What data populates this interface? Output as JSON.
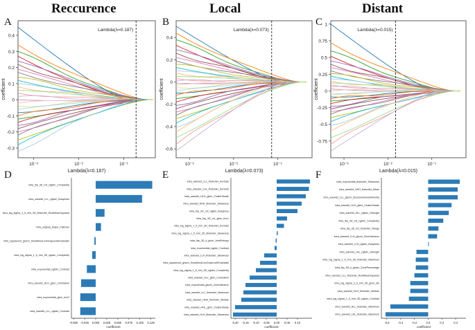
{
  "columns": [
    "Reccurence",
    "Local",
    "Distant"
  ],
  "panel_letters": [
    "A",
    "B",
    "C",
    "D",
    "E",
    "F"
  ],
  "chart_data": [
    {
      "id": "A",
      "type": "line",
      "title": "Reccurence",
      "xscale": "log",
      "xlim": [
        0.00045,
        0.5
      ],
      "ylim": [
        -0.36,
        0.49
      ],
      "xticks": [
        {
          "v": 0.001,
          "l": "10⁻³"
        },
        {
          "v": 0.01,
          "l": "10⁻²"
        },
        {
          "v": 0.1,
          "l": "10⁻¹"
        }
      ],
      "yticks": [
        -0.3,
        -0.2,
        -0.1,
        0,
        0.1,
        0.2,
        0.3,
        0.4
      ],
      "xlabel": "Lambda(λ=0.187)",
      "ylabel": "coefficient",
      "lambda_value": 0.187,
      "lambda_label": "Lambda(λ=0.187)",
      "path_count": 30,
      "start_coefficients": [
        0.45,
        0.34,
        0.3,
        0.27,
        0.24,
        0.22,
        0.19,
        0.17,
        0.14,
        0.12,
        0.1,
        0.08,
        0.06,
        0.04,
        0.02,
        0.0,
        -0.02,
        -0.04,
        -0.06,
        -0.08,
        -0.1,
        -0.12,
        -0.14,
        -0.16,
        -0.18,
        -0.2,
        -0.22,
        -0.25,
        -0.28,
        -0.32
      ]
    },
    {
      "id": "B",
      "type": "line",
      "title": "Local",
      "xscale": "log",
      "xlim": [
        0.0005,
        0.6
      ],
      "ylim": [
        -0.68,
        0.55
      ],
      "xticks": [
        {
          "v": 0.001,
          "l": "10⁻³"
        },
        {
          "v": 0.01,
          "l": "10⁻²"
        },
        {
          "v": 0.1,
          "l": "10⁻¹"
        }
      ],
      "yticks": [
        -0.6,
        -0.4,
        -0.2,
        0,
        0.2,
        0.4
      ],
      "xlabel": "Lambda(λ=0.073)",
      "ylabel": "coefficient",
      "lambda_value": 0.073,
      "lambda_label": "Lambda(λ=0.073)",
      "path_count": 34,
      "start_coefficients": [
        0.5,
        0.44,
        0.38,
        0.33,
        0.29,
        0.26,
        0.22,
        0.19,
        0.16,
        0.13,
        0.1,
        0.08,
        0.05,
        0.03,
        0.01,
        -0.01,
        -0.03,
        -0.05,
        -0.08,
        -0.1,
        -0.12,
        -0.15,
        -0.18,
        -0.21,
        -0.24,
        -0.27,
        -0.3,
        -0.33,
        -0.37,
        -0.41,
        -0.45,
        -0.5,
        -0.56,
        -0.62
      ]
    },
    {
      "id": "C",
      "type": "line",
      "title": "Distant",
      "xscale": "log",
      "xlim": [
        0.0005,
        0.6
      ],
      "ylim": [
        -1.0,
        1.05
      ],
      "xticks": [
        {
          "v": 0.001,
          "l": "10⁻³"
        },
        {
          "v": 0.01,
          "l": "10⁻²"
        },
        {
          "v": 0.1,
          "l": "10⁻¹"
        }
      ],
      "yticks": [
        -0.75,
        -0.5,
        -0.25,
        0,
        0.25,
        0.5,
        0.75,
        1.0
      ],
      "xlabel": "Lambda(λ=0.015)",
      "ylabel": "coefficient",
      "lambda_value": 0.015,
      "lambda_label": "Lambda(λ=0.015)",
      "path_count": 34,
      "start_coefficients": [
        1.0,
        0.72,
        0.6,
        0.52,
        0.45,
        0.4,
        0.35,
        0.3,
        0.26,
        0.22,
        0.18,
        0.15,
        0.12,
        0.09,
        0.06,
        0.03,
        0.0,
        -0.03,
        -0.06,
        -0.09,
        -0.12,
        -0.15,
        -0.19,
        -0.23,
        -0.27,
        -0.31,
        -0.35,
        -0.4,
        -0.46,
        -0.52,
        -0.6,
        -0.7,
        -0.8,
        -0.9
      ]
    },
    {
      "id": "D",
      "type": "bar",
      "orientation": "horizontal",
      "xlabel": "coefficient",
      "xlim": [
        -0.055,
        0.135
      ],
      "xticks": [
        -0.05,
        -0.025,
        0.0,
        0.025,
        0.05,
        0.075,
        0.1,
        0.125
      ],
      "xtick_labels": [
        "-0.050",
        "-0.025",
        "0.000",
        "0.025",
        "0.050",
        "0.075",
        "0.100",
        "0.125"
      ],
      "categories": [
        "intra_lbp_3D_m2_ngldm_Complexity",
        "intra_wavelet_LLL_ngtdm_Busyness",
        "intra_log_sigma_1_5_mm_3D_firstorder_RootMeanSquared",
        "intra_original_shape_Flatness",
        "intra_squareroot_glszm_SmallAreaLowGrayLevelEmphasis",
        "intra_log_sigma_1_5_mm_3D_ngtdm_Complexity",
        "intra_exponential_ngtdm_Contrast",
        "intra_wavelet_HLH_glcm_Correlation",
        "intra_exponential_glcm_Imc2",
        "intra_wavelet_LLL_ngtdm_Contrast"
      ],
      "values": [
        0.128,
        0.105,
        0.02,
        0.012,
        -0.003,
        -0.008,
        -0.02,
        -0.033,
        -0.035,
        -0.035
      ]
    },
    {
      "id": "E",
      "type": "bar",
      "orientation": "horizontal",
      "xlabel": "coefficient",
      "xlim": [
        -0.22,
        0.17
      ],
      "xticks": [
        -0.2,
        -0.15,
        -0.1,
        -0.05,
        0.0,
        0.05,
        0.1
      ],
      "xtick_labels": [
        "-0.20",
        "-0.15",
        "-0.10",
        "-0.05",
        "0.00",
        "0.05",
        "0.10"
      ],
      "categories": [
        "intra_wavelet_LLL_firstorder_Kurtosis",
        "intra_wavelet_LHL_firstorder_Kurtosis",
        "intra_wavelet_HLH_glrlm_ClusterShade",
        "intra_wavelet_HHH_firstorder_Skewness",
        "intra_lbp_3D_m2_ngldm_Busyness",
        "intra_lbp_3D_m1_glcm_Imc1",
        "intra_log_sigma_1_5_mm_3D_firstorder_Kurtosis",
        "intra_log_sigma_1_5_mm_3D_firstorder_Skewness",
        "intra_lbp_3D_k_glcm_JointEntropy",
        "intra_exponential_ngtdm_Contrast",
        "intra_wavelet_LLH_firstorder_Skewness",
        "intra_squareroot_glszm_SmallAreaLowGrayLevelEmphasis",
        "intra_log_sigma_1_5_mm_3D_ngtdm_Complexity",
        "intra_wavelet_HLL_glcm_Correlation",
        "intra_exponential_glszm_ZoneVariance",
        "intra_wavelet_LLL_firstorder_Maximum",
        "intra_wavelet_HHH_firstorder_Median",
        "intra_wavelet_HHL_glcm_ClusterShade",
        "intra_wavelet_HLH_firstorder_Skewness"
      ],
      "values": [
        0.16,
        0.155,
        0.14,
        0.12,
        0.1,
        0.05,
        0.035,
        0.005,
        -0.005,
        -0.01,
        -0.06,
        -0.08,
        -0.1,
        -0.13,
        -0.15,
        -0.16,
        -0.17,
        -0.2,
        -0.21
      ]
    },
    {
      "id": "F",
      "type": "bar",
      "orientation": "horizontal",
      "xlabel": "coefficient",
      "xlim": [
        -0.68,
        0.55
      ],
      "xticks": [
        -0.6,
        -0.4,
        -0.2,
        0.0,
        0.2,
        0.4
      ],
      "xtick_labels": [
        "-0.6",
        "-0.4",
        "-0.2",
        "0.0",
        "0.2",
        "0.4"
      ],
      "categories": [
        "intra_exponential_firstorder_Skewness",
        "intra_wavelet_HHH_firstorder_Mean",
        "intra_wavelet_LLL_glszm_SizeZoneNonUniformity",
        "intra_wavelet_HLH_glrlm_ClusterShade",
        "intra_wavelet_HLL_ngtdm_Strength",
        "intra_lbp_3D_m2_ngldm_Complexity",
        "intra_lbp_3D_m2_firstorder_Range",
        "intra_wavelet_LLH_glszm_ZoneVariance",
        "intra_wavelet_LLH_ngtdm_Busyness",
        "intra_wavelet_LHL_ngtdm_Strength",
        "intra_log_sigma_1_5_mm_3D_firstorder_Maximum",
        "intra_lbp_3D_k_glszm_ZonePercentage",
        "intra_wavelet_LLL_firstorder_RootMeanSquared",
        "intra_log_sigma_3_0_mm_3D_glcm_Idn",
        "intra_wavelet_HLH_firstorder_Median",
        "intra_log_sigma_1_0_mm_3D_ngtdm_Contrast",
        "intra_wavelet_HLL_firstorder_Maximum",
        "intra_wavelet_LHL_firstorder_Maximum"
      ],
      "values": [
        0.46,
        0.43,
        0.43,
        0.34,
        0.3,
        0.22,
        0.15,
        0.13,
        0.01,
        -0.17,
        -0.18,
        -0.18,
        -0.2,
        -0.26,
        -0.26,
        -0.28,
        -0.55,
        -0.62
      ]
    }
  ]
}
